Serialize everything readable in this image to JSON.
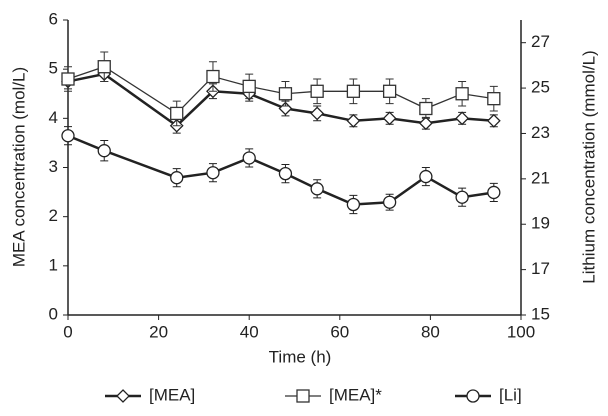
{
  "chart_data": {
    "type": "line",
    "x_label": "Time (h)",
    "y_label": "MEA concentration (mol/L)",
    "y2_label": "Lithium concentration (mmol/L)",
    "x": [
      0,
      8,
      24,
      32,
      40,
      48,
      55,
      63,
      71,
      79,
      87,
      94
    ],
    "xlim": [
      0,
      100
    ],
    "xticks": [
      0,
      20,
      40,
      60,
      80,
      100
    ],
    "ylim": [
      0,
      6
    ],
    "yticks": [
      0,
      1,
      2,
      3,
      4,
      5,
      6
    ],
    "y2lim": [
      15,
      28
    ],
    "y2ticks": [
      15,
      17,
      19,
      21,
      23,
      25,
      27
    ],
    "series": [
      {
        "name": "[MEA]",
        "color": "#222222",
        "marker": "diamond",
        "values": [
          4.75,
          4.9,
          3.85,
          4.55,
          4.5,
          4.2,
          4.1,
          3.95,
          4.0,
          3.9,
          4.0,
          3.95
        ],
        "errors": [
          0.15,
          0.15,
          0.15,
          0.15,
          0.15,
          0.15,
          0.15,
          0.12,
          0.12,
          0.12,
          0.12,
          0.12
        ]
      },
      {
        "name": "[MEA]*",
        "color": "#333333",
        "marker": "square",
        "values": [
          4.8,
          5.05,
          4.1,
          4.85,
          4.65,
          4.5,
          4.55,
          4.55,
          4.55,
          4.2,
          4.5,
          4.4
        ],
        "errors": [
          0.25,
          0.3,
          0.25,
          0.3,
          0.25,
          0.25,
          0.25,
          0.25,
          0.25,
          0.2,
          0.25,
          0.25
        ]
      },
      {
        "name": "[Li]",
        "color": "#222222",
        "marker": "circle",
        "axis": "y2",
        "values": [
          22.9,
          22.24,
          21.05,
          21.27,
          21.92,
          21.23,
          20.56,
          19.87,
          19.97,
          21.1,
          20.19,
          20.4
        ],
        "errors": [
          0.4,
          0.45,
          0.4,
          0.4,
          0.4,
          0.4,
          0.4,
          0.4,
          0.35,
          0.4,
          0.4,
          0.4
        ]
      }
    ]
  }
}
